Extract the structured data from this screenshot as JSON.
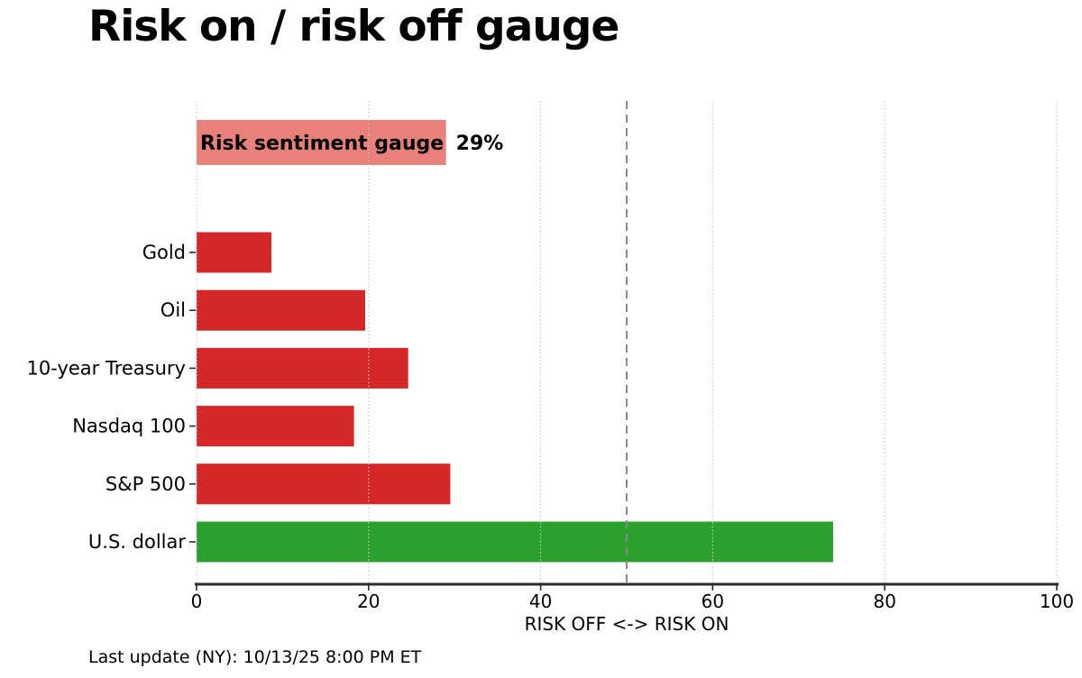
{
  "page": {
    "title": "Risk on / risk off gauge",
    "footer": "Last update (NY): 10/13/25 8:00 PM ET"
  },
  "chart_data": {
    "type": "bar",
    "orientation": "horizontal",
    "title": "Risk on / risk off gauge",
    "xlabel": "RISK OFF <-> RISK ON",
    "xlim": [
      0,
      100
    ],
    "xticks": [
      0,
      20,
      40,
      60,
      80,
      100
    ],
    "grid": "vertical-dotted",
    "legend": "none",
    "reference_line_x": 50,
    "gauge": {
      "label": "Risk sentiment gauge",
      "value": 29,
      "value_label": "29%",
      "color": "#e8807b"
    },
    "categories": [
      "Gold",
      "Oil",
      "10-year Treasury",
      "Nasdaq 100",
      "S&P 500",
      "U.S. dollar"
    ],
    "series": [
      {
        "name": "risk score",
        "values": [
          8.7,
          19.6,
          24.6,
          18.3,
          29.5,
          74.0
        ]
      }
    ],
    "bar_colors": [
      "#d62728",
      "#d62728",
      "#d62728",
      "#d62728",
      "#d62728",
      "#2ca02c"
    ],
    "colors": {
      "risk_off_red": "#d62728",
      "risk_on_green": "#2ca02c",
      "gauge_pink": "#e8807b",
      "reference_line": "#8a8a8a",
      "gridline": "#c9c9c9",
      "axis_spine": "#2b2b2b",
      "text": "#000000"
    }
  }
}
